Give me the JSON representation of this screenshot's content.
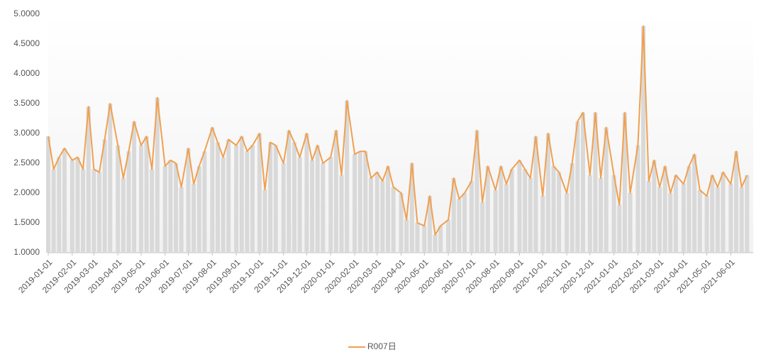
{
  "chart_data": {
    "type": "line",
    "x": [
      "2019-01-01",
      "2019-01-08",
      "2019-01-15",
      "2019-01-22",
      "2019-02-01",
      "2019-02-08",
      "2019-02-15",
      "2019-02-22",
      "2019-03-01",
      "2019-03-08",
      "2019-03-15",
      "2019-03-22",
      "2019-04-01",
      "2019-04-08",
      "2019-04-15",
      "2019-04-22",
      "2019-05-01",
      "2019-05-08",
      "2019-05-15",
      "2019-05-22",
      "2019-06-01",
      "2019-06-08",
      "2019-06-15",
      "2019-06-22",
      "2019-07-01",
      "2019-07-08",
      "2019-07-15",
      "2019-07-22",
      "2019-08-01",
      "2019-08-08",
      "2019-08-15",
      "2019-08-22",
      "2019-09-01",
      "2019-09-08",
      "2019-09-15",
      "2019-09-22",
      "2019-10-01",
      "2019-10-08",
      "2019-10-15",
      "2019-10-22",
      "2019-11-01",
      "2019-11-08",
      "2019-11-15",
      "2019-11-22",
      "2019-12-01",
      "2019-12-08",
      "2019-12-15",
      "2019-12-22",
      "2020-01-01",
      "2020-01-08",
      "2020-01-15",
      "2020-01-22",
      "2020-02-01",
      "2020-02-08",
      "2020-02-15",
      "2020-02-22",
      "2020-03-01",
      "2020-03-08",
      "2020-03-15",
      "2020-03-22",
      "2020-04-01",
      "2020-04-08",
      "2020-04-15",
      "2020-04-22",
      "2020-05-01",
      "2020-05-08",
      "2020-05-15",
      "2020-05-22",
      "2020-06-01",
      "2020-06-08",
      "2020-06-15",
      "2020-06-22",
      "2020-07-01",
      "2020-07-08",
      "2020-07-15",
      "2020-07-22",
      "2020-08-01",
      "2020-08-08",
      "2020-08-15",
      "2020-08-22",
      "2020-09-01",
      "2020-09-08",
      "2020-09-15",
      "2020-09-22",
      "2020-10-01",
      "2020-10-08",
      "2020-10-15",
      "2020-10-22",
      "2020-11-01",
      "2020-11-08",
      "2020-11-15",
      "2020-11-22",
      "2020-12-01",
      "2020-12-08",
      "2020-12-15",
      "2020-12-22",
      "2021-01-01",
      "2021-01-08",
      "2021-01-15",
      "2021-01-22",
      "2021-02-01",
      "2021-02-08",
      "2021-02-15",
      "2021-02-22",
      "2021-03-01",
      "2021-03-08",
      "2021-03-15",
      "2021-03-22",
      "2021-04-01",
      "2021-04-08",
      "2021-04-15",
      "2021-04-22",
      "2021-05-01",
      "2021-05-08",
      "2021-05-15",
      "2021-05-22",
      "2021-06-01",
      "2021-06-08",
      "2021-06-15",
      "2021-06-22"
    ],
    "series": [
      {
        "name": "R007日",
        "color": "#f0a050",
        "bar_color": "#d9d9d9",
        "values": [
          2.95,
          2.4,
          2.6,
          2.75,
          2.55,
          2.6,
          2.4,
          3.45,
          2.4,
          2.35,
          2.9,
          3.5,
          2.8,
          2.25,
          2.7,
          3.2,
          2.8,
          2.95,
          2.4,
          3.6,
          2.45,
          2.55,
          2.5,
          2.1,
          2.75,
          2.15,
          2.45,
          2.7,
          3.1,
          2.85,
          2.6,
          2.9,
          2.8,
          2.95,
          2.7,
          2.8,
          3.0,
          2.05,
          2.85,
          2.8,
          2.5,
          3.05,
          2.85,
          2.6,
          3.0,
          2.55,
          2.8,
          2.5,
          2.6,
          3.05,
          2.3,
          3.55,
          2.65,
          2.7,
          2.7,
          2.25,
          2.35,
          2.2,
          2.45,
          2.1,
          2.0,
          1.55,
          2.5,
          1.5,
          1.45,
          1.95,
          1.3,
          1.45,
          1.55,
          2.25,
          1.9,
          2.0,
          2.2,
          3.05,
          1.85,
          2.45,
          2.05,
          2.45,
          2.15,
          2.4,
          2.55,
          2.4,
          2.25,
          2.95,
          1.95,
          3.0,
          2.45,
          2.35,
          2.0,
          2.5,
          3.2,
          3.35,
          2.3,
          3.35,
          2.25,
          3.1,
          2.3,
          1.8,
          3.35,
          2.0,
          2.8,
          4.8,
          2.2,
          2.55,
          2.1,
          2.45,
          2.0,
          2.3,
          2.15,
          2.45,
          2.65,
          2.05,
          1.95,
          2.3,
          2.1,
          2.35,
          2.15,
          2.7,
          2.1,
          2.3
        ]
      }
    ],
    "xlim": [
      "2019-01-01",
      "2021-06-30"
    ],
    "xticks": [
      "2019-01-01",
      "2019-02-01",
      "2019-03-01",
      "2019-04-01",
      "2019-05-01",
      "2019-06-01",
      "2019-07-01",
      "2019-08-01",
      "2019-09-01",
      "2019-10-01",
      "2019-11-01",
      "2019-12-01",
      "2020-01-01",
      "2020-02-01",
      "2020-03-01",
      "2020-04-01",
      "2020-05-01",
      "2020-06-01",
      "2020-07-01",
      "2020-08-01",
      "2020-09-01",
      "2020-10-01",
      "2020-11-01",
      "2020-12-01",
      "2021-01-01",
      "2021-02-01",
      "2021-03-01",
      "2021-04-01",
      "2021-05-01",
      "2021-06-01"
    ],
    "ylim": [
      1,
      5
    ],
    "yticks": [
      {
        "value": 1,
        "label": "1.0000"
      },
      {
        "value": 1.5,
        "label": "1.5000"
      },
      {
        "value": 2,
        "label": "2.0000"
      },
      {
        "value": 2.5,
        "label": "2.5000"
      },
      {
        "value": 3,
        "label": "3.0000"
      },
      {
        "value": 3.5,
        "label": "3.5000"
      },
      {
        "value": 4,
        "label": "4.0000"
      },
      {
        "value": 4.5,
        "label": "4.5000"
      },
      {
        "value": 5,
        "label": "5.0000"
      }
    ],
    "legend": "bottom"
  }
}
